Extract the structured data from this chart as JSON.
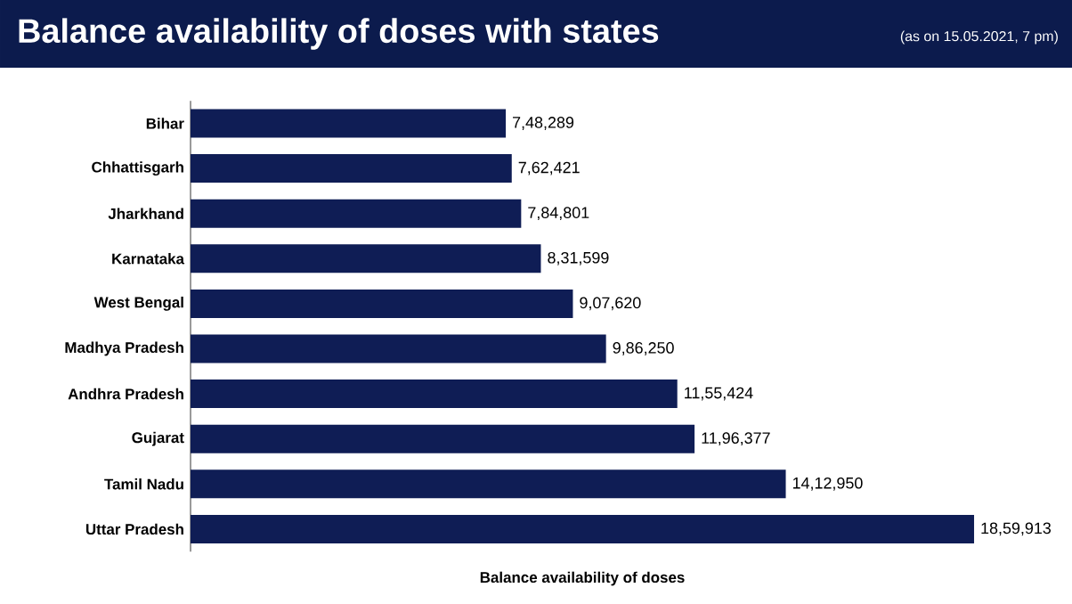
{
  "chart_data": {
    "type": "bar",
    "orientation": "horizontal",
    "title": "Balance availability of doses with states",
    "subtitle": "(as on 15.05.2021, 7 pm)",
    "xlabel": "Balance availability of doses",
    "categories": [
      "Bihar",
      "Chhattisgarh",
      "Jharkhand",
      "Karnataka",
      "West Bengal",
      "Madhya Pradesh",
      "Andhra Pradesh",
      "Gujarat",
      "Tamil Nadu",
      "Uttar Pradesh"
    ],
    "values": [
      748289,
      762421,
      784801,
      831599,
      907620,
      986250,
      1155424,
      1196377,
      1412950,
      1859913
    ],
    "value_labels": [
      "7,48,289",
      "7,62,421",
      "7,84,801",
      "8,31,599",
      "9,07,620",
      "9,86,250",
      "11,55,424",
      "11,96,377",
      "14,12,950",
      "18,59,913"
    ],
    "color": "#0f1d55"
  }
}
